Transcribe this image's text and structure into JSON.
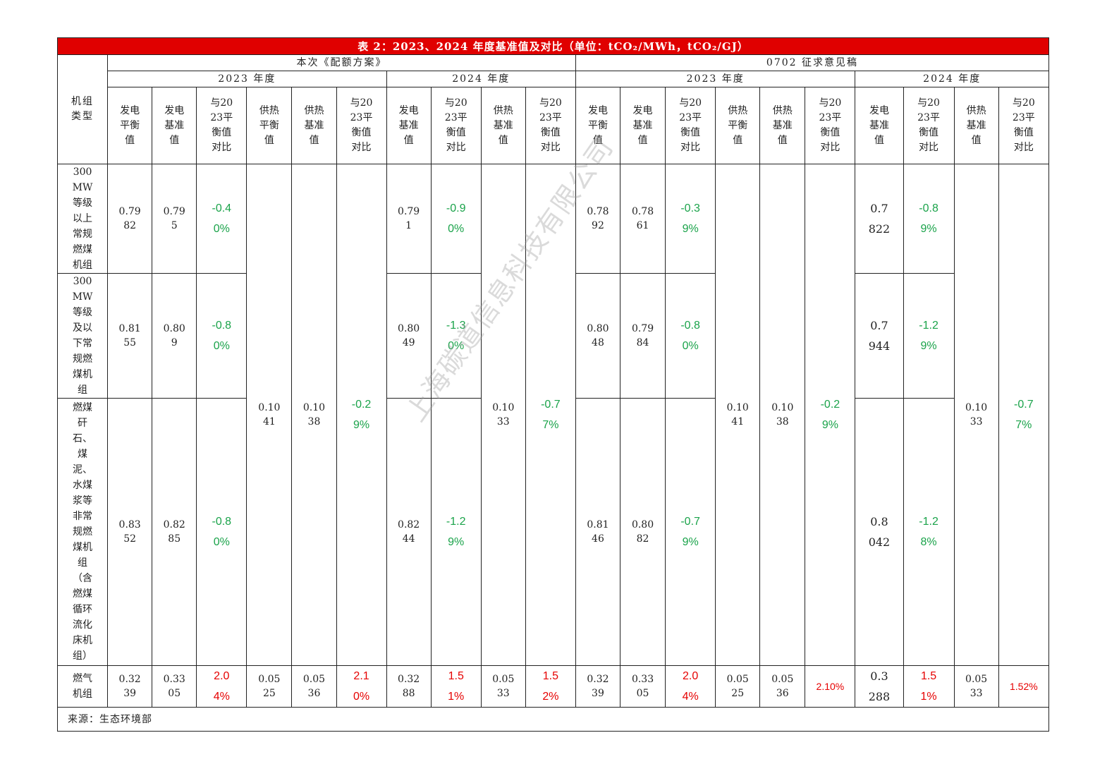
{
  "table": {
    "title": "表 2：2023、2024 年度基准值及对比（单位：tCO₂/MWh，tCO₂/GJ）",
    "group_a": "本次《配额方案》",
    "group_b": "0702 征求意见稿",
    "year_2023": "2023 年度",
    "year_2024": "2024 年度",
    "row_header": "机组类型",
    "col_gen_balance": "发电平衡值",
    "col_gen_base": "发电基准值",
    "col_compare": "与2023平衡值对比",
    "col_heat_balance": "供热平衡值",
    "col_heat_base": "供热基准值",
    "colors": {
      "negative": "#1aa34a",
      "positive": "#e60000"
    },
    "shared": {
      "a23_heat_balance": "0.1041",
      "a23_heat_base": "0.1038",
      "a23_heat_cmp": "-0.29%",
      "a24_heat_base": "0.1033",
      "a24_heat_cmp": "-0.77%",
      "b23_heat_balance": "0.1041",
      "b23_heat_base": "0.1038",
      "b23_heat_cmp": "-0.29%",
      "b24_heat_base": "0.1033",
      "b24_heat_cmp": "-0.77%"
    },
    "rows": [
      {
        "type": "300MW等级以上常规燃煤机组",
        "a23_gen_balance": "0.7982",
        "a23_gen_base": "0.795",
        "a23_gen_cmp": "-0.40%",
        "a24_gen_base": "0.791",
        "a24_gen_cmp": "-0.90%",
        "b23_gen_balance": "0.7892",
        "b23_gen_base": "0.7861",
        "b23_gen_cmp": "-0.39%",
        "b24_gen_base": "0.7822",
        "b24_gen_cmp": "-0.89%"
      },
      {
        "type": "300MW等级及以下常规燃煤机组",
        "a23_gen_balance": "0.8155",
        "a23_gen_base": "0.809",
        "a23_gen_cmp": "-0.80%",
        "a24_gen_base": "0.8049",
        "a24_gen_cmp": "-1.30%",
        "b23_gen_balance": "0.8048",
        "b23_gen_base": "0.7984",
        "b23_gen_cmp": "-0.80%",
        "b24_gen_base": "0.7944",
        "b24_gen_cmp": "-1.29%"
      },
      {
        "type": "燃煤矸石、煤泥、水煤浆等非常规燃煤机组（含燃煤循环流化床机组）",
        "a23_gen_balance": "0.8352",
        "a23_gen_base": "0.8285",
        "a23_gen_cmp": "-0.80%",
        "a24_gen_base": "0.8244",
        "a24_gen_cmp": "-1.29%",
        "b23_gen_balance": "0.8146",
        "b23_gen_base": "0.8082",
        "b23_gen_cmp": "-0.79%",
        "b24_gen_base": "0.8042",
        "b24_gen_cmp": "-1.28%"
      },
      {
        "type": "燃气机组",
        "a23_gen_balance": "0.3239",
        "a23_gen_base": "0.3305",
        "a23_gen_cmp": "2.04%",
        "a23_heat_balance": "0.0525",
        "a23_heat_base": "0.0536",
        "a23_heat_cmp": "2.10%",
        "a24_gen_base": "0.3288",
        "a24_gen_cmp": "1.51%",
        "a24_heat_base": "0.0533",
        "a24_heat_cmp": "1.52%",
        "b23_gen_balance": "0.3239",
        "b23_gen_base": "0.3305",
        "b23_gen_cmp": "2.04%",
        "b23_heat_balance": "0.0525",
        "b23_heat_base": "0.0536",
        "b23_heat_cmp": "2.10%",
        "b24_gen_base": "0.3288",
        "b24_gen_cmp": "1.51%",
        "b24_heat_base": "0.0533",
        "b24_heat_cmp": "1.52%"
      }
    ],
    "source": "来源：生态环境部"
  },
  "watermark": "上海碳道信息科技有限公司"
}
